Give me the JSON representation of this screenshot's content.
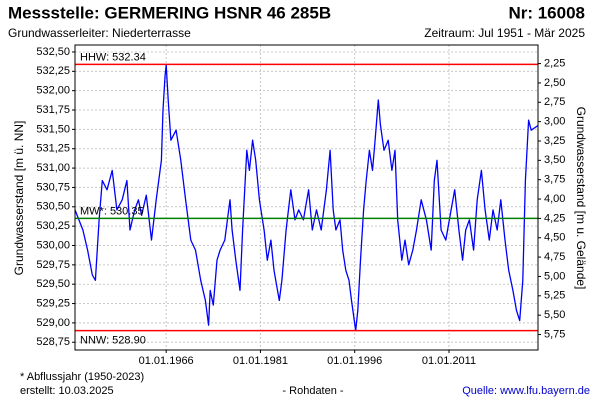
{
  "chart_data": {
    "type": "line",
    "title": "Messstelle: GERMERING HSNR 46 285B",
    "number": "Nr: 16008",
    "subtitle_left": "Grundwasserleiter:  Niederterrasse",
    "subtitle_right": "Zeitraum: Jul 1951 - Mär 2025",
    "y_label": "Grundwasserstand [m ü. NN]",
    "y2_label": "Grundwasserstand [m u. Gelände]",
    "footnote": "* Abflussjahr (1950-2023)",
    "created": "erstellt:  10.03.2025",
    "data_note": "- Rohdaten -",
    "source": "Quelle: www.lfu.bayern.de",
    "grid": true,
    "y2_inverted": true,
    "xlim": [
      "1951-07-01",
      "2025-03-01"
    ],
    "xticks": [
      {
        "value": "1966-01-01",
        "label": "01.01.1966"
      },
      {
        "value": "1981-01-01",
        "label": "01.01.1981"
      },
      {
        "value": "1996-01-01",
        "label": "01.01.1996"
      },
      {
        "value": "2011-01-01",
        "label": "01.01.2011"
      }
    ],
    "ylim": [
      528.65,
      532.59
    ],
    "yticks": [
      {
        "value": 528.75,
        "label": "528,75"
      },
      {
        "value": 529.0,
        "label": "529,00"
      },
      {
        "value": 529.25,
        "label": "529,25"
      },
      {
        "value": 529.5,
        "label": "529,50"
      },
      {
        "value": 529.75,
        "label": "529,75"
      },
      {
        "value": 530.0,
        "label": "530,00"
      },
      {
        "value": 530.25,
        "label": "530,25"
      },
      {
        "value": 530.5,
        "label": "530,50"
      },
      {
        "value": 530.75,
        "label": "530,75"
      },
      {
        "value": 531.0,
        "label": "531,00"
      },
      {
        "value": 531.25,
        "label": "531,25"
      },
      {
        "value": 531.5,
        "label": "531,50"
      },
      {
        "value": 531.75,
        "label": "531,75"
      },
      {
        "value": 532.0,
        "label": "532,00"
      },
      {
        "value": 532.25,
        "label": "532,25"
      },
      {
        "value": 532.5,
        "label": "532,50"
      }
    ],
    "y2lim": [
      2.01,
      5.95
    ],
    "y2ticks": [
      {
        "value": 2.25,
        "label": "2,25"
      },
      {
        "value": 2.5,
        "label": "2,50"
      },
      {
        "value": 2.75,
        "label": "2,75"
      },
      {
        "value": 3.0,
        "label": "3,00"
      },
      {
        "value": 3.25,
        "label": "3,25"
      },
      {
        "value": 3.5,
        "label": "3,50"
      },
      {
        "value": 3.75,
        "label": "3,75"
      },
      {
        "value": 4.0,
        "label": "4,00"
      },
      {
        "value": 4.25,
        "label": "4,25"
      },
      {
        "value": 4.5,
        "label": "4,50"
      },
      {
        "value": 4.75,
        "label": "4,75"
      },
      {
        "value": 5.0,
        "label": "5,00"
      },
      {
        "value": 5.25,
        "label": "5,25"
      },
      {
        "value": 5.5,
        "label": "5,50"
      },
      {
        "value": 5.75,
        "label": "5,75"
      }
    ],
    "reference_lines": [
      {
        "label": "HHW: 532.34",
        "value": 532.34,
        "color": "#ff0000"
      },
      {
        "label": "MW*: 530.35",
        "value": 530.35,
        "color": "#008000"
      },
      {
        "label": "NNW: 528.90",
        "value": 528.9,
        "color": "#ff0000"
      }
    ],
    "x": [
      "1951-07-01",
      "1952-10-01",
      "1953-07-01",
      "1954-04-01",
      "1954-10-01",
      "1955-05-01",
      "1955-11-01",
      "1956-08-01",
      "1957-06-01",
      "1958-03-01",
      "1959-01-01",
      "1959-10-01",
      "1960-04-01",
      "1961-01-01",
      "1961-08-01",
      "1962-02-01",
      "1962-11-01",
      "1963-09-01",
      "1964-06-01",
      "1965-04-01",
      "1965-07-01",
      "1965-11-01",
      "1966-01-01",
      "1966-05-01",
      "1966-10-01",
      "1967-08-01",
      "1968-05-01",
      "1969-02-01",
      "1969-12-01",
      "1970-09-01",
      "1971-07-01",
      "1972-04-01",
      "1972-10-01",
      "1973-01-01",
      "1973-07-01",
      "1974-02-01",
      "1974-08-01",
      "1975-05-01",
      "1976-03-01",
      "1976-07-01",
      "1977-02-01",
      "1977-10-01",
      "1978-03-01",
      "1978-11-01",
      "1979-04-01",
      "1979-10-01",
      "1980-04-01",
      "1980-11-01",
      "1981-08-01",
      "1982-02-01",
      "1982-09-01",
      "1983-03-01",
      "1984-01-01",
      "1984-06-01",
      "1985-02-01",
      "1985-11-01",
      "1986-07-01",
      "1987-02-01",
      "1987-11-01",
      "1988-09-01",
      "1989-04-01",
      "1989-12-01",
      "1990-09-01",
      "1991-07-01",
      "1992-02-01",
      "1992-08-01",
      "1993-01-01",
      "1993-09-01",
      "1994-02-01",
      "1994-08-01",
      "1995-02-01",
      "1995-07-01",
      "1996-03-01",
      "1996-07-01",
      "1996-12-01",
      "1997-06-01",
      "1997-11-01",
      "1998-05-01",
      "1998-11-01",
      "1999-04-01",
      "1999-10-01",
      "2000-02-01",
      "2000-09-01",
      "2001-05-01",
      "2001-12-01",
      "2002-06-01",
      "2002-11-01",
      "2003-07-01",
      "2004-01-01",
      "2004-08-01",
      "2005-04-01",
      "2005-11-01",
      "2006-08-01",
      "2007-06-01",
      "2008-03-01",
      "2008-09-01",
      "2009-02-01",
      "2009-10-01",
      "2010-07-01",
      "2011-05-01",
      "2011-12-01",
      "2012-08-01",
      "2013-03-01",
      "2013-09-01",
      "2014-04-01",
      "2014-12-01",
      "2015-07-01",
      "2016-03-01",
      "2016-10-01",
      "2017-06-01",
      "2018-01-01",
      "2018-09-01",
      "2019-04-01",
      "2019-12-01",
      "2020-07-01",
      "2021-03-01",
      "2021-10-01",
      "2022-04-01",
      "2022-10-01",
      "2023-03-01",
      "2023-09-01",
      "2024-02-01",
      "2025-03-01"
    ],
    "series": [
      {
        "name": "Grundwasserstand",
        "color": "#0000ff",
        "values": [
          530.46,
          530.2,
          529.94,
          529.62,
          529.55,
          530.33,
          530.84,
          530.72,
          530.97,
          530.46,
          530.59,
          530.84,
          530.2,
          530.46,
          530.59,
          530.39,
          530.65,
          530.07,
          530.59,
          531.1,
          531.75,
          532.2,
          532.33,
          531.88,
          531.36,
          531.49,
          531.1,
          530.59,
          530.07,
          529.94,
          529.55,
          529.29,
          528.97,
          529.42,
          529.23,
          529.81,
          529.94,
          530.07,
          530.59,
          530.2,
          529.81,
          529.42,
          530.2,
          531.23,
          530.97,
          531.36,
          531.1,
          530.59,
          530.2,
          529.81,
          530.07,
          529.68,
          529.29,
          529.55,
          530.2,
          530.72,
          530.33,
          530.46,
          530.33,
          530.72,
          530.2,
          530.46,
          530.2,
          530.72,
          531.23,
          530.46,
          530.2,
          530.33,
          529.94,
          529.68,
          529.55,
          529.29,
          528.9,
          529.16,
          529.81,
          530.46,
          530.84,
          531.23,
          530.97,
          531.36,
          531.88,
          531.56,
          531.23,
          531.36,
          530.97,
          531.23,
          530.33,
          529.81,
          530.07,
          529.75,
          529.94,
          530.2,
          530.59,
          530.33,
          529.94,
          530.84,
          531.1,
          530.2,
          530.07,
          530.46,
          530.72,
          530.2,
          529.81,
          530.2,
          530.33,
          529.94,
          530.59,
          530.97,
          530.46,
          530.07,
          530.46,
          530.2,
          530.59,
          530.07,
          529.68,
          529.42,
          529.16,
          529.03,
          529.55,
          530.84,
          531.62,
          531.49,
          531.55
        ]
      }
    ]
  }
}
